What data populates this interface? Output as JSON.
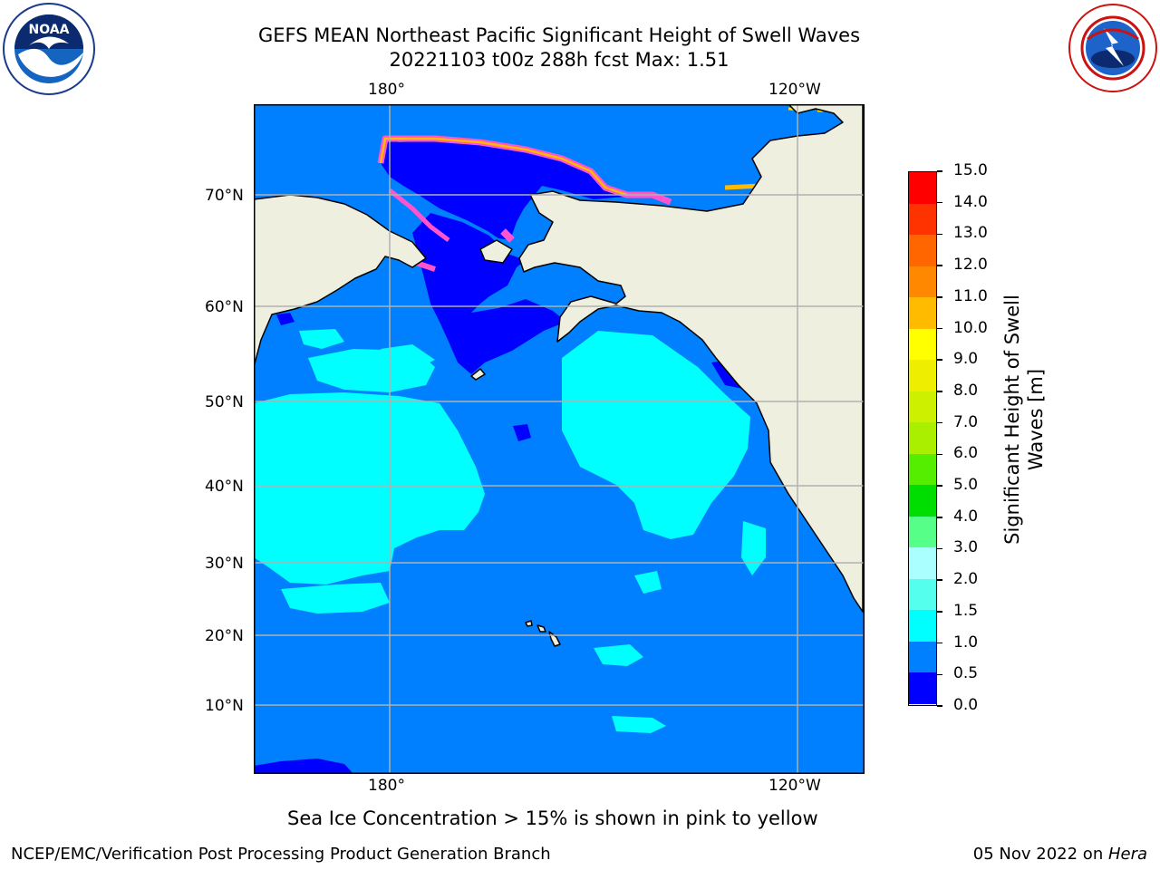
{
  "header": {
    "title_line1": "GEFS MEAN Northeast Pacific Significant Height of Swell Waves",
    "title_line2": "20221103 t00z 288h fcst   Max: 1.51"
  },
  "logos": {
    "left": "NOAA",
    "left_ring_text": "NATIONAL OCEANIC AND ATMOSPHERIC ADMINISTRATION · U.S. DEPARTMENT OF COMMERCE",
    "right_ring_text": "NATIONAL WEATHER SERVICE"
  },
  "map": {
    "lon_labels_top": [
      "180°",
      "120°W"
    ],
    "lon_labels_bottom": [
      "180°",
      "120°W"
    ],
    "lat_labels": [
      "70°N",
      "60°N",
      "50°N",
      "40°N",
      "30°N",
      "20°N",
      "10°N"
    ],
    "colors": {
      "ocean": "#0080ff",
      "calm": "#0000ff",
      "swell_1_15": "#00ffff",
      "land": "#efefdf",
      "grid": "#b0b0b0",
      "ice_edge": "#ff55cc"
    }
  },
  "colorbar": {
    "title_line1": "Significant Height of Swell",
    "title_line2": "Waves [m]",
    "ticks": [
      "15.0",
      "14.0",
      "13.0",
      "12.0",
      "11.0",
      "10.0",
      "9.0",
      "8.0",
      "7.0",
      "6.0",
      "5.0",
      "4.0",
      "3.0",
      "2.0",
      "1.5",
      "1.0",
      "0.5",
      "0.0"
    ],
    "colors": [
      "#0000ff",
      "#0080ff",
      "#00ffff",
      "#55ffee",
      "#aaffff",
      "#55ff88",
      "#00dd00",
      "#55ee00",
      "#aaee00",
      "#ccf000",
      "#eeee00",
      "#ffff00",
      "#ffbb00",
      "#ff8800",
      "#ff6600",
      "#ff3300",
      "#ff0000"
    ]
  },
  "note": "Sea Ice Concentration > 15% is shown in pink to yellow",
  "footer": {
    "left": "NCEP/EMC/Verification Post Processing Product Generation Branch",
    "right_date": "05 Nov 2022 on ",
    "right_host": "Hera"
  }
}
